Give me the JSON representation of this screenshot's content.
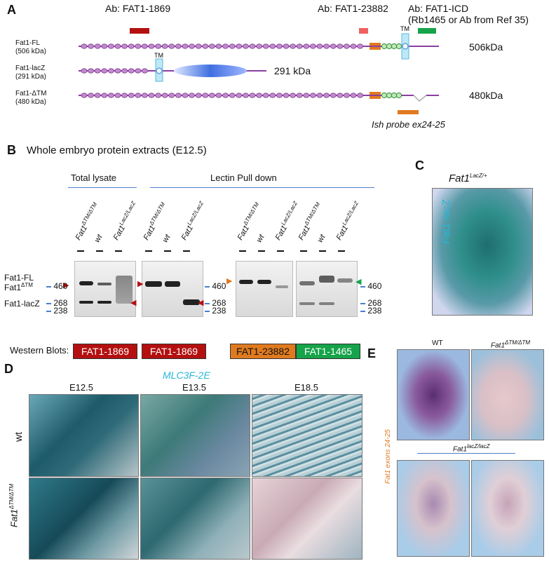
{
  "panelA": {
    "label": "A",
    "ab1": "Ab: FAT1-1869",
    "ab2": "Ab: FAT1-23882",
    "ab3_line1": "Ab: FAT1-ICD",
    "ab3_line2": "(Rb1465 or Ab from Ref 35)",
    "rows": [
      {
        "name": "Fat1-FL",
        "kda": "(506 kDa)",
        "size": "506kDa"
      },
      {
        "name": "Fat1-lacZ",
        "kda": "(291 kDa)",
        "size": "291 kDa"
      },
      {
        "name": "Fat1-ΔTM",
        "kda": "(480 kDa)",
        "size": "480kDa"
      }
    ],
    "tm": "TM",
    "probe": "Ish probe ex24-25"
  },
  "panelB": {
    "label": "B",
    "title": "Whole embryo protein extracts (E12.5)",
    "group1": "Total lysate",
    "group2": "Lectin Pull down",
    "lane_dtm": "Fat1",
    "lane_dtm_sup": "ΔTM/ΔTM",
    "lane_wt": "wt",
    "lane_lacz": "Fat1",
    "lane_lacz_sup": "LacZ/LacZ",
    "band_fl": "Fat1-FL",
    "band_dtm": "Fat1",
    "band_dtm_sup": "ΔTM",
    "band_lacz": "Fat1-lacZ",
    "markers": [
      "460",
      "268",
      "238"
    ],
    "wb_label": "Western Blots:",
    "wb": [
      "FAT1-1869",
      "FAT1-1869",
      "FAT1-23882",
      "FAT1-1465"
    ]
  },
  "panelC": {
    "label": "C",
    "title": "Fat1",
    "title_sup": "LacZ/+",
    "side": "Fat1-lacZ"
  },
  "panelD": {
    "label": "D",
    "title": "MLC3F-2E",
    "stages": [
      "E12.5",
      "E13.5",
      "E18.5"
    ],
    "row_wt": "wt",
    "row_mut": "Fat1",
    "row_mut_sup": "ΔTM/ΔTM"
  },
  "panelE": {
    "label": "E",
    "col_wt": "WT",
    "col_mut": "Fat1",
    "col_mut_sup": "ΔTM/ΔTM",
    "side": "Fat1 exons 24-25",
    "bottom": "Fat1",
    "bottom_sup": "lacZ/lacZ"
  },
  "colors": {
    "red": "#b41010",
    "orange": "#e07a1f",
    "green": "#16a34a",
    "cyan": "#29b6d6",
    "purple": "#8b3fa0"
  }
}
